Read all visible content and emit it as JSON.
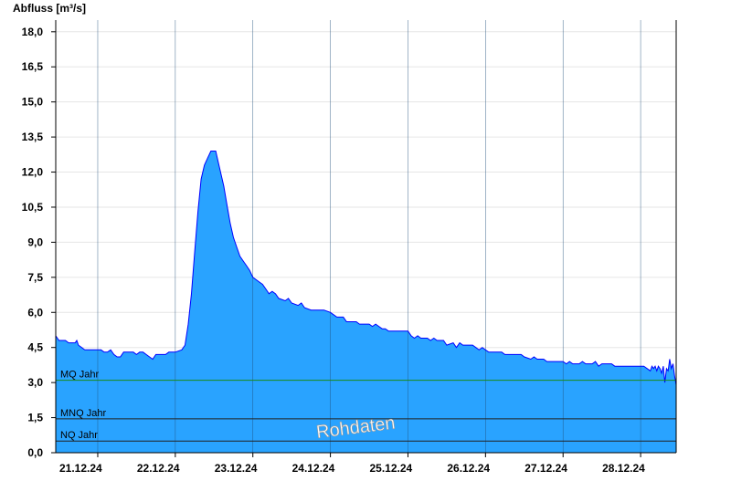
{
  "chart_data": {
    "type": "area",
    "ylabel": "Abfluss [m³/s]",
    "ylim": [
      0,
      18.5
    ],
    "yticks": [
      0,
      1.5,
      3,
      4.5,
      6,
      7.5,
      9,
      10.5,
      12,
      13.5,
      15,
      16.5,
      18
    ],
    "ytick_labels": [
      "0,0",
      "1,5",
      "3,0",
      "4,5",
      "6,0",
      "7,5",
      "9,0",
      "10,5",
      "12,0",
      "13,5",
      "15,0",
      "16,5",
      "18,0"
    ],
    "xlim": [
      "2024-12-20T11:00",
      "2024-12-28T11:00"
    ],
    "xticks": [
      "2024-12-21",
      "2024-12-22",
      "2024-12-23",
      "2024-12-24",
      "2024-12-25",
      "2024-12-26",
      "2024-12-27",
      "2024-12-28"
    ],
    "xtick_labels": [
      "21.12.24",
      "22.12.24",
      "23.12.24",
      "24.12.24",
      "25.12.24",
      "26.12.24",
      "27.12.24",
      "28.12.24"
    ],
    "grid": true,
    "series": [
      {
        "color": "#29a3ff",
        "line_color": "#0000ff",
        "points": [
          [
            "2024-12-20T11:00",
            5.0
          ],
          [
            "2024-12-20T11:30",
            4.9
          ],
          [
            "2024-12-20T12:00",
            4.8
          ],
          [
            "2024-12-20T14:00",
            4.8
          ],
          [
            "2024-12-20T15:00",
            4.7
          ],
          [
            "2024-12-20T17:00",
            4.7
          ],
          [
            "2024-12-20T17:30",
            4.8
          ],
          [
            "2024-12-20T18:00",
            4.6
          ],
          [
            "2024-12-20T19:00",
            4.5
          ],
          [
            "2024-12-20T20:00",
            4.4
          ],
          [
            "2024-12-21T01:00",
            4.4
          ],
          [
            "2024-12-21T02:00",
            4.3
          ],
          [
            "2024-12-21T03:00",
            4.3
          ],
          [
            "2024-12-21T04:00",
            4.4
          ],
          [
            "2024-12-21T05:00",
            4.2
          ],
          [
            "2024-12-21T06:00",
            4.1
          ],
          [
            "2024-12-21T07:00",
            4.1
          ],
          [
            "2024-12-21T08:00",
            4.3
          ],
          [
            "2024-12-21T09:00",
            4.3
          ],
          [
            "2024-12-21T11:00",
            4.3
          ],
          [
            "2024-12-21T12:00",
            4.2
          ],
          [
            "2024-12-21T13:00",
            4.3
          ],
          [
            "2024-12-21T14:00",
            4.3
          ],
          [
            "2024-12-21T15:00",
            4.2
          ],
          [
            "2024-12-21T16:00",
            4.1
          ],
          [
            "2024-12-21T17:00",
            4.0
          ],
          [
            "2024-12-21T18:00",
            4.2
          ],
          [
            "2024-12-21T21:00",
            4.2
          ],
          [
            "2024-12-21T22:00",
            4.3
          ],
          [
            "2024-12-22T00:00",
            4.3
          ],
          [
            "2024-12-22T02:00",
            4.4
          ],
          [
            "2024-12-22T03:00",
            4.6
          ],
          [
            "2024-12-22T04:00",
            5.5
          ],
          [
            "2024-12-22T05:00",
            6.8
          ],
          [
            "2024-12-22T06:00",
            8.6
          ],
          [
            "2024-12-22T07:00",
            10.3
          ],
          [
            "2024-12-22T08:00",
            11.7
          ],
          [
            "2024-12-22T09:00",
            12.3
          ],
          [
            "2024-12-22T10:00",
            12.6
          ],
          [
            "2024-12-22T11:00",
            12.9
          ],
          [
            "2024-12-22T12:30",
            12.9
          ],
          [
            "2024-12-22T13:30",
            12.3
          ],
          [
            "2024-12-22T15:00",
            11.4
          ],
          [
            "2024-12-22T16:00",
            10.6
          ],
          [
            "2024-12-22T17:00",
            9.8
          ],
          [
            "2024-12-22T18:00",
            9.2
          ],
          [
            "2024-12-22T19:00",
            8.8
          ],
          [
            "2024-12-22T20:00",
            8.4
          ],
          [
            "2024-12-22T21:00",
            8.2
          ],
          [
            "2024-12-22T22:00",
            8.0
          ],
          [
            "2024-12-22T23:00",
            7.8
          ],
          [
            "2024-12-23T00:00",
            7.5
          ],
          [
            "2024-12-23T02:00",
            7.3
          ],
          [
            "2024-12-23T03:00",
            7.2
          ],
          [
            "2024-12-23T04:00",
            7.0
          ],
          [
            "2024-12-23T05:00",
            6.8
          ],
          [
            "2024-12-23T06:00",
            6.9
          ],
          [
            "2024-12-23T07:00",
            6.8
          ],
          [
            "2024-12-23T08:00",
            6.6
          ],
          [
            "2024-12-23T10:00",
            6.5
          ],
          [
            "2024-12-23T11:00",
            6.6
          ],
          [
            "2024-12-23T12:00",
            6.4
          ],
          [
            "2024-12-23T14:00",
            6.3
          ],
          [
            "2024-12-23T15:00",
            6.4
          ],
          [
            "2024-12-23T16:00",
            6.2
          ],
          [
            "2024-12-23T18:00",
            6.1
          ],
          [
            "2024-12-23T22:00",
            6.1
          ],
          [
            "2024-12-24T00:00",
            6.0
          ],
          [
            "2024-12-24T01:00",
            5.9
          ],
          [
            "2024-12-24T02:00",
            5.8
          ],
          [
            "2024-12-24T04:00",
            5.8
          ],
          [
            "2024-12-24T05:00",
            5.6
          ],
          [
            "2024-12-24T08:00",
            5.6
          ],
          [
            "2024-12-24T09:00",
            5.5
          ],
          [
            "2024-12-24T12:00",
            5.5
          ],
          [
            "2024-12-24T13:00",
            5.4
          ],
          [
            "2024-12-24T14:00",
            5.5
          ],
          [
            "2024-12-24T15:00",
            5.4
          ],
          [
            "2024-12-24T16:00",
            5.3
          ],
          [
            "2024-12-24T17:00",
            5.3
          ],
          [
            "2024-12-24T18:00",
            5.2
          ],
          [
            "2024-12-25T00:00",
            5.2
          ],
          [
            "2024-12-25T01:00",
            5.0
          ],
          [
            "2024-12-25T02:00",
            4.9
          ],
          [
            "2024-12-25T03:00",
            5.0
          ],
          [
            "2024-12-25T04:00",
            4.9
          ],
          [
            "2024-12-25T06:00",
            4.9
          ],
          [
            "2024-12-25T07:00",
            4.8
          ],
          [
            "2024-12-25T08:00",
            4.9
          ],
          [
            "2024-12-25T09:00",
            4.8
          ],
          [
            "2024-12-25T11:00",
            4.8
          ],
          [
            "2024-12-25T12:00",
            4.6
          ],
          [
            "2024-12-25T14:00",
            4.7
          ],
          [
            "2024-12-25T15:00",
            4.5
          ],
          [
            "2024-12-25T16:00",
            4.7
          ],
          [
            "2024-12-25T17:00",
            4.6
          ],
          [
            "2024-12-25T20:00",
            4.6
          ],
          [
            "2024-12-25T21:00",
            4.5
          ],
          [
            "2024-12-25T22:00",
            4.4
          ],
          [
            "2024-12-25T23:00",
            4.5
          ],
          [
            "2024-12-26T00:00",
            4.4
          ],
          [
            "2024-12-26T01:00",
            4.3
          ],
          [
            "2024-12-26T05:00",
            4.3
          ],
          [
            "2024-12-26T06:00",
            4.2
          ],
          [
            "2024-12-26T11:00",
            4.2
          ],
          [
            "2024-12-26T12:00",
            4.1
          ],
          [
            "2024-12-26T14:00",
            4.0
          ],
          [
            "2024-12-26T15:00",
            4.1
          ],
          [
            "2024-12-26T16:00",
            4.0
          ],
          [
            "2024-12-26T18:00",
            4.0
          ],
          [
            "2024-12-26T19:00",
            3.9
          ],
          [
            "2024-12-27T00:00",
            3.9
          ],
          [
            "2024-12-27T01:00",
            3.8
          ],
          [
            "2024-12-27T02:00",
            3.9
          ],
          [
            "2024-12-27T03:00",
            3.8
          ],
          [
            "2024-12-27T05:00",
            3.8
          ],
          [
            "2024-12-27T06:00",
            3.9
          ],
          [
            "2024-12-27T07:00",
            3.8
          ],
          [
            "2024-12-27T09:00",
            3.8
          ],
          [
            "2024-12-27T10:00",
            3.9
          ],
          [
            "2024-12-27T11:00",
            3.7
          ],
          [
            "2024-12-27T12:00",
            3.8
          ],
          [
            "2024-12-27T15:00",
            3.8
          ],
          [
            "2024-12-27T16:00",
            3.7
          ],
          [
            "2024-12-28T01:00",
            3.7
          ],
          [
            "2024-12-28T02:00",
            3.6
          ],
          [
            "2024-12-28T03:00",
            3.5
          ],
          [
            "2024-12-28T03:30",
            3.7
          ],
          [
            "2024-12-28T04:00",
            3.6
          ],
          [
            "2024-12-28T04:30",
            3.7
          ],
          [
            "2024-12-28T05:00",
            3.5
          ],
          [
            "2024-12-28T05:30",
            3.7
          ],
          [
            "2024-12-28T06:00",
            3.6
          ],
          [
            "2024-12-28T06:30",
            3.4
          ],
          [
            "2024-12-28T07:00",
            3.7
          ],
          [
            "2024-12-28T07:30",
            3.0
          ],
          [
            "2024-12-28T08:00",
            3.6
          ],
          [
            "2024-12-28T08:30",
            3.5
          ],
          [
            "2024-12-28T09:00",
            4.0
          ],
          [
            "2024-12-28T09:30",
            3.6
          ],
          [
            "2024-12-28T10:00",
            3.8
          ],
          [
            "2024-12-28T10:30",
            3.3
          ],
          [
            "2024-12-28T11:00",
            2.9
          ]
        ]
      }
    ],
    "reference_lines": [
      {
        "label": "MQ Jahr",
        "value": 3.1,
        "color": "#1a8a1a"
      },
      {
        "label": "MNQ Jahr",
        "value": 1.45,
        "color": "#222222"
      },
      {
        "label": "NQ Jahr",
        "value": 0.5,
        "color": "#222222"
      }
    ],
    "annotation": "Rohdaten"
  }
}
